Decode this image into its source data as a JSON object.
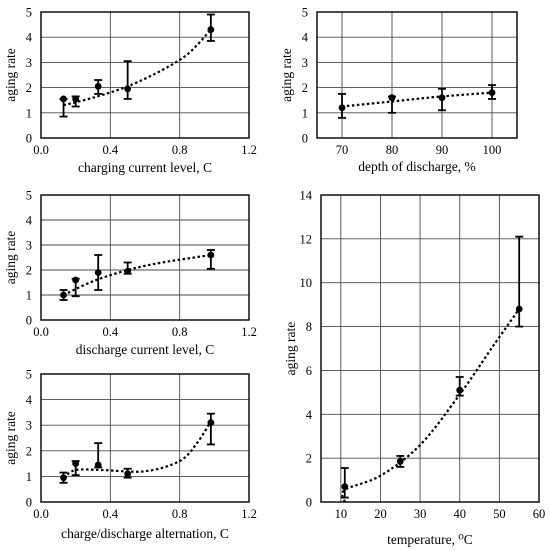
{
  "chart_data": [
    {
      "type": "scatter",
      "xlabel": "charging current level, C",
      "ylabel": "aging rate",
      "xlim": [
        0,
        1.2
      ],
      "ylim": [
        0,
        5
      ],
      "xticks": [
        "0.0",
        "0.4",
        "0.8",
        "1.2"
      ],
      "yticks": [
        "0",
        "1",
        "2",
        "3",
        "4",
        "5"
      ],
      "grid": true,
      "points": [
        {
          "x": 0.13,
          "y": 1.55,
          "ylo": 0.85,
          "yhi": 1.55
        },
        {
          "x": 0.2,
          "y": 1.55,
          "ylo": 1.25,
          "yhi": 1.65
        },
        {
          "x": 0.33,
          "y": 2.05,
          "ylo": 1.75,
          "yhi": 2.3
        },
        {
          "x": 0.5,
          "y": 1.95,
          "ylo": 1.55,
          "yhi": 3.05
        },
        {
          "x": 0.98,
          "y": 4.3,
          "ylo": 3.85,
          "yhi": 4.9
        }
      ],
      "trend": [
        [
          0.13,
          1.3
        ],
        [
          0.3,
          1.6
        ],
        [
          0.5,
          2.05
        ],
        [
          0.7,
          2.7
        ],
        [
          0.85,
          3.35
        ],
        [
          0.98,
          4.3
        ]
      ]
    },
    {
      "type": "scatter",
      "xlabel": "depth of discharge, %",
      "ylabel": "aging rate",
      "xlim": [
        65,
        105
      ],
      "ylim": [
        0,
        5
      ],
      "xticks": [
        "70",
        "80",
        "90",
        "100"
      ],
      "yticks": [
        "0",
        "1",
        "2",
        "3",
        "4",
        "5"
      ],
      "grid": true,
      "points": [
        {
          "x": 70,
          "y": 1.2,
          "ylo": 0.8,
          "yhi": 1.75
        },
        {
          "x": 80,
          "y": 1.6,
          "ylo": 1.0,
          "yhi": 1.65
        },
        {
          "x": 90,
          "y": 1.6,
          "ylo": 1.1,
          "yhi": 1.95
        },
        {
          "x": 100,
          "y": 1.8,
          "ylo": 1.55,
          "yhi": 2.1
        }
      ],
      "trend": [
        [
          70,
          1.25
        ],
        [
          80,
          1.45
        ],
        [
          90,
          1.65
        ],
        [
          100,
          1.8
        ]
      ]
    },
    {
      "type": "scatter",
      "xlabel": "discharge current level, C",
      "ylabel": "aging rate",
      "xlim": [
        0,
        1.2
      ],
      "ylim": [
        0,
        5
      ],
      "xticks": [
        "0.0",
        "0.4",
        "0.8",
        "1.2"
      ],
      "yticks": [
        "0",
        "1",
        "2",
        "3",
        "4",
        "5"
      ],
      "grid": true,
      "points": [
        {
          "x": 0.13,
          "y": 1.0,
          "ylo": 0.8,
          "yhi": 1.2
        },
        {
          "x": 0.2,
          "y": 1.6,
          "ylo": 0.95,
          "yhi": 1.65
        },
        {
          "x": 0.33,
          "y": 1.9,
          "ylo": 1.2,
          "yhi": 2.6
        },
        {
          "x": 0.5,
          "y": 1.95,
          "ylo": 1.85,
          "yhi": 2.3
        },
        {
          "x": 0.98,
          "y": 2.6,
          "ylo": 2.05,
          "yhi": 2.8
        }
      ],
      "trend": [
        [
          0.13,
          1.0
        ],
        [
          0.3,
          1.55
        ],
        [
          0.5,
          2.0
        ],
        [
          0.7,
          2.3
        ],
        [
          0.98,
          2.6
        ]
      ]
    },
    {
      "type": "scatter",
      "xlabel": "charge/discharge alternation, C",
      "ylabel": "aging rate",
      "xlim": [
        0,
        1.2
      ],
      "ylim": [
        0,
        5
      ],
      "xticks": [
        "0.0",
        "0.4",
        "0.8",
        "1.2"
      ],
      "yticks": [
        "0",
        "1",
        "2",
        "3",
        "4",
        "5"
      ],
      "grid": true,
      "points": [
        {
          "x": 0.13,
          "y": 0.95,
          "ylo": 0.75,
          "yhi": 1.15
        },
        {
          "x": 0.2,
          "y": 1.5,
          "ylo": 1.05,
          "yhi": 1.6
        },
        {
          "x": 0.33,
          "y": 1.45,
          "ylo": 1.35,
          "yhi": 2.3
        },
        {
          "x": 0.5,
          "y": 1.1,
          "ylo": 0.95,
          "yhi": 1.3
        },
        {
          "x": 0.98,
          "y": 3.1,
          "ylo": 2.25,
          "yhi": 3.45
        }
      ],
      "trend": [
        [
          0.13,
          0.95
        ],
        [
          0.2,
          1.25
        ],
        [
          0.35,
          1.25
        ],
        [
          0.6,
          1.2
        ],
        [
          0.8,
          1.6
        ],
        [
          0.9,
          2.3
        ],
        [
          0.98,
          3.15
        ]
      ]
    },
    {
      "type": "scatter",
      "xlabel": "temperature, ⁰C",
      "ylabel": "aging rate",
      "xlim": [
        5,
        60
      ],
      "ylim": [
        0,
        14
      ],
      "xticks": [
        "10",
        "20",
        "30",
        "40",
        "50",
        "60"
      ],
      "yticks": [
        "0",
        "2",
        "4",
        "6",
        "8",
        "10",
        "12",
        "14"
      ],
      "grid": true,
      "points": [
        {
          "x": 11,
          "y": 0.7,
          "ylo": 0.2,
          "yhi": 1.55
        },
        {
          "x": 25,
          "y": 1.85,
          "ylo": 1.6,
          "yhi": 2.1
        },
        {
          "x": 40,
          "y": 5.1,
          "ylo": 4.85,
          "yhi": 5.7
        },
        {
          "x": 55,
          "y": 8.8,
          "ylo": 8.0,
          "yhi": 12.1
        }
      ],
      "trend": [
        [
          11,
          0.0
        ],
        [
          11,
          0.55
        ],
        [
          20,
          1.2
        ],
        [
          30,
          2.6
        ],
        [
          40,
          4.9
        ],
        [
          48,
          7.0
        ],
        [
          55,
          8.8
        ]
      ]
    }
  ]
}
